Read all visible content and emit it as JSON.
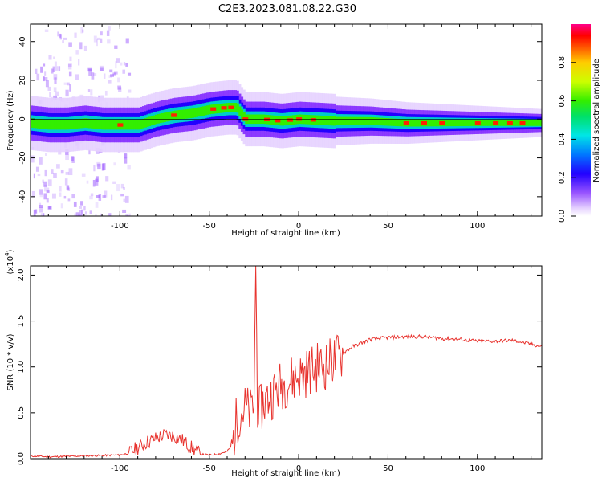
{
  "title": "C2E3.2023.081.08.22.G30",
  "chart_data": [
    {
      "type": "heatmap",
      "xlabel": "Height of straight line (km)",
      "ylabel": "Frequency (Hz)",
      "xlim": [
        -150,
        136
      ],
      "ylim": [
        -50,
        49
      ],
      "xticks": [
        -100,
        -50,
        0,
        50,
        100
      ],
      "yticks": [
        -40,
        -20,
        0,
        20,
        40
      ],
      "colorbar": {
        "label": "Normalized spectral amplitude",
        "ticks": [
          "0.0",
          "0.2",
          "0.4",
          "0.6",
          "0.8"
        ],
        "range": [
          0,
          1
        ]
      },
      "ridge": {
        "x": [
          -150,
          -140,
          -130,
          -120,
          -110,
          -100,
          -90,
          -80,
          -70,
          -60,
          -50,
          -40,
          -35,
          -32,
          -30,
          -20,
          -10,
          0,
          20,
          40,
          60,
          80,
          90,
          100,
          120,
          136
        ],
        "freq": [
          -2,
          -3,
          -3,
          -2,
          -3,
          -3,
          -3,
          0,
          2,
          3,
          5,
          6,
          6,
          2,
          0,
          0,
          -1,
          0,
          -1,
          -1,
          -2,
          -2,
          -2,
          -2,
          -2,
          -2
        ]
      }
    },
    {
      "type": "line",
      "xlabel": "Height of straight line (km)",
      "ylabel": "SNR (10 * v/v)",
      "y_multiplier": "(x10",
      "y_multiplier_exp": "4",
      "y_multiplier_close": ")",
      "xlim": [
        -150,
        136
      ],
      "ylim": [
        0,
        2.1
      ],
      "xticks": [
        -100,
        -50,
        0,
        50,
        100
      ],
      "yticks": [
        "0.0",
        "0.5",
        "1.0",
        "1.5",
        "2.0"
      ],
      "color": "#e8332e",
      "x": [
        -150,
        -140,
        -120,
        -100,
        -95,
        -90,
        -85,
        -80,
        -75,
        -70,
        -65,
        -60,
        -55,
        -50,
        -45,
        -40,
        -37,
        -35,
        -33,
        -30,
        -27,
        -25,
        -24,
        -23,
        -22,
        -20,
        -15,
        -10,
        -5,
        0,
        5,
        10,
        15,
        20,
        25,
        30,
        40,
        50,
        60,
        70,
        80,
        90,
        100,
        110,
        120,
        136
      ],
      "y": [
        0.03,
        0.02,
        0.03,
        0.04,
        0.06,
        0.12,
        0.18,
        0.22,
        0.26,
        0.25,
        0.2,
        0.12,
        0.05,
        0.04,
        0.05,
        0.08,
        0.15,
        0.4,
        0.5,
        0.55,
        0.5,
        0.6,
        2.1,
        0.6,
        0.5,
        0.6,
        0.7,
        0.8,
        0.85,
        0.9,
        0.95,
        1.0,
        1.02,
        1.08,
        1.15,
        1.22,
        1.3,
        1.32,
        1.33,
        1.33,
        1.31,
        1.3,
        1.28,
        1.28,
        1.29,
        1.22
      ]
    }
  ]
}
